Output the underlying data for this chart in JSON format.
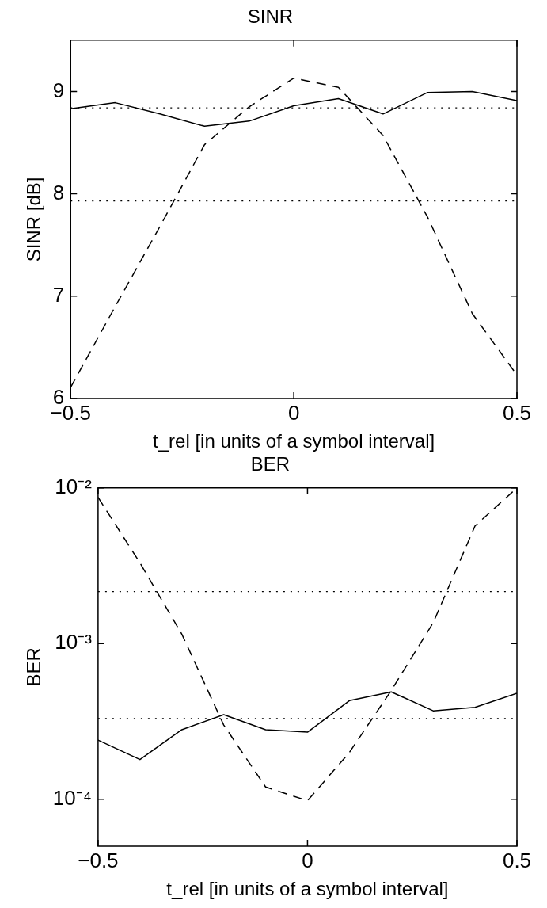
{
  "chart_data": [
    {
      "type": "line",
      "title": "SINR",
      "xlabel": "t_rel [in units of a symbol interval]",
      "ylabel": "SINR [dB]",
      "x": [
        -0.5,
        -0.4,
        -0.3,
        -0.2,
        -0.1,
        0,
        0.1,
        0.2,
        0.3,
        0.4,
        0.5
      ],
      "series": [
        {
          "color": "#000000",
          "line_style": "solid",
          "values": [
            8.83,
            8.89,
            8.78,
            8.66,
            8.71,
            8.86,
            8.93,
            8.78,
            8.99,
            9.0,
            8.91
          ]
        },
        {
          "color": "#000000",
          "line_style": "dashed",
          "values": [
            6.11,
            6.9,
            7.68,
            8.48,
            8.85,
            9.13,
            9.04,
            8.57,
            7.77,
            6.83,
            6.23
          ]
        }
      ],
      "xlim": [
        -0.5,
        0.5
      ],
      "xticks": [
        {
          "value": -0.5,
          "label": "−0.5"
        },
        {
          "value": 0,
          "label": "0"
        },
        {
          "value": 0.5,
          "label": "0.5"
        }
      ],
      "ylim": [
        6,
        9.5
      ],
      "yticks": [
        6,
        7,
        8,
        9
      ],
      "ref_lines": [
        {
          "axis": "y",
          "value": 8.84,
          "color": "#000000",
          "line_style": "dotted"
        },
        {
          "axis": "y",
          "value": 7.93,
          "color": "#000000",
          "line_style": "dotted"
        }
      ],
      "legend": false
    },
    {
      "type": "line",
      "title": "BER",
      "xlabel": "t_rel [in units of a symbol interval]",
      "ylabel": "BER",
      "log": "y",
      "x": [
        -0.5,
        -0.4,
        -0.3,
        -0.2,
        -0.1,
        0,
        0.1,
        0.2,
        0.3,
        0.4,
        0.5
      ],
      "series": [
        {
          "color": "#000000",
          "line_style": "solid",
          "values": [
            0.00024,
            0.00018,
            0.00028,
            0.00035,
            0.00028,
            0.00027,
            0.00043,
            0.00049,
            0.00037,
            0.00039,
            0.00048
          ]
        },
        {
          "color": "#000000",
          "line_style": "dashed",
          "values": [
            0.0087,
            0.0033,
            0.00115,
            0.0003,
            0.00012,
            9.8e-05,
            0.0002,
            0.0005,
            0.00136,
            0.0057,
            0.01
          ]
        }
      ],
      "xlim": [
        -0.5,
        0.5
      ],
      "xticks": [
        {
          "value": -0.5,
          "label": "−0.5"
        },
        {
          "value": 0,
          "label": "0"
        },
        {
          "value": 0.5,
          "label": "0.5"
        }
      ],
      "ylim": [
        5e-05,
        0.01
      ],
      "yticks": [
        {
          "value": 0.0001,
          "label": "10⁻⁴"
        },
        {
          "value": 0.001,
          "label": "10⁻³"
        },
        {
          "value": 0.01,
          "label": "10⁻²"
        }
      ],
      "ref_lines": [
        {
          "axis": "y",
          "value": 0.00216,
          "color": "#000000",
          "line_style": "dotted"
        },
        {
          "axis": "y",
          "value": 0.00033,
          "color": "#000000",
          "line_style": "dotted"
        }
      ],
      "legend": false
    }
  ]
}
